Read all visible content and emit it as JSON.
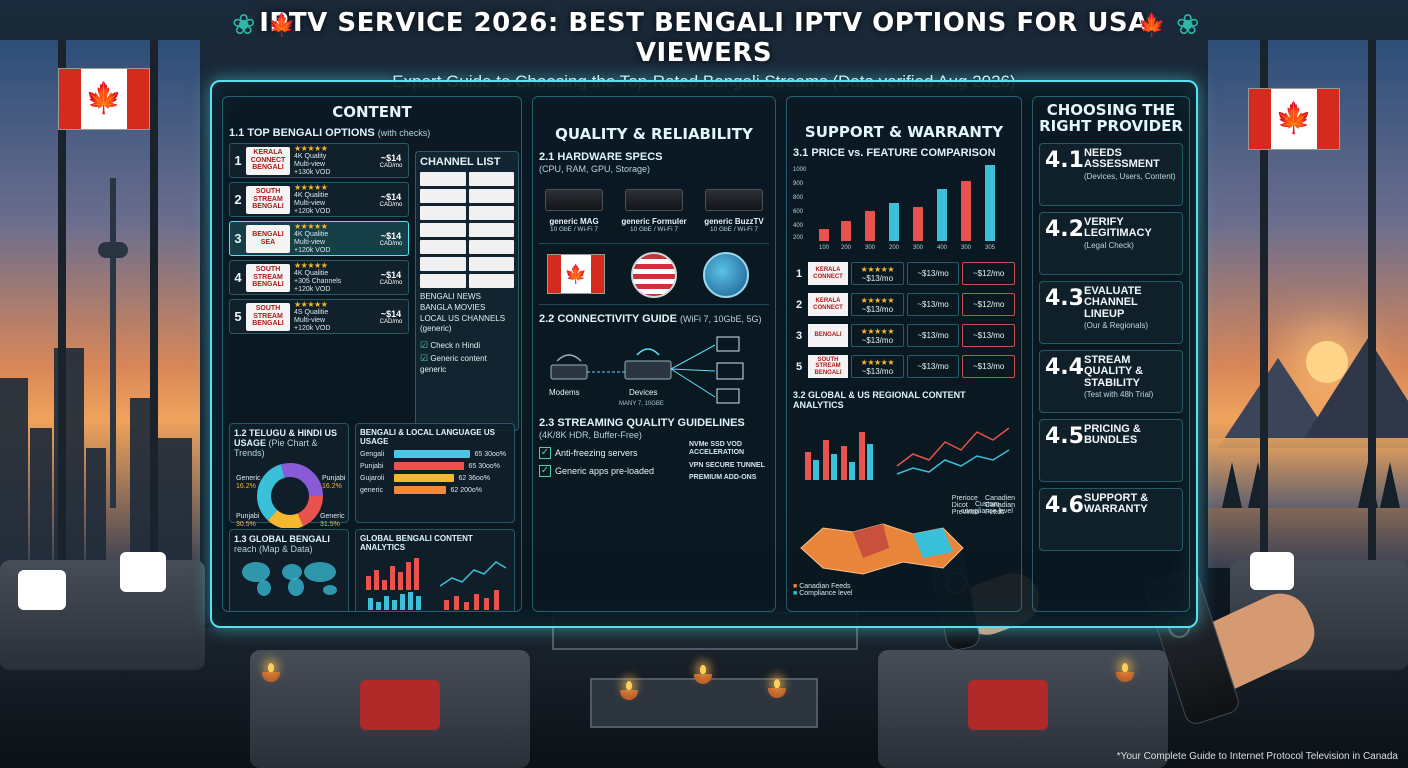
{
  "header": {
    "title": "IPTV SERVICE 2026: BEST BENGALI IPTV OPTIONS FOR USA VIEWERS",
    "subtitle": "Expert Guide to Choosing the Top-Rated Bengali Streams (Data verified Aug 2026)"
  },
  "content_panel": {
    "title": "CONTENT",
    "section_1_1": {
      "label": "1.1 TOP BENGALI OPTIONS",
      "note": "(with checks)"
    },
    "options": [
      {
        "num": "1",
        "logo": "KERALA CONNECT BENGALI",
        "stars": "★★★★★",
        "line1": "4K Quality",
        "line2": "Multi-view",
        "line3": "+130k VOD",
        "price": "~$14",
        "unit": "CAD/mo"
      },
      {
        "num": "2",
        "logo": "SOUTH STREAM BENGALI",
        "stars": "★★★★★",
        "line1": "4K Qualitie",
        "line2": "Multi-view",
        "line3": "+120k VOD",
        "price": "~$14",
        "unit": "CAD/mo"
      },
      {
        "num": "3",
        "logo": "BENGALI SEA",
        "stars": "★★★★★",
        "line1": "4K Qualitie",
        "line2": "Multi-view",
        "line3": "+120k VOD",
        "price": "~$14",
        "unit": "CAD/mo"
      },
      {
        "num": "4",
        "logo": "SOUTH STREAM BENGALI",
        "stars": "★★★★★",
        "line1": "4K Qualitie",
        "line2": "+305 Channels",
        "line3": "+120k VOD",
        "price": "~$14",
        "unit": "CAD/mo"
      },
      {
        "num": "5",
        "logo": "SOUTH STREAM BENGALI",
        "stars": "★★★★★",
        "line1": "4S Qualitie",
        "line2": "Multi-view",
        "line3": "+120k VOD",
        "price": "~$14",
        "unit": "CAD/mo"
      }
    ],
    "channel_list": {
      "label": "CHANNEL LIST",
      "items": [
        "BENGALI NEWS",
        "BANGLA MOVIES",
        "LOCAL US CHANNELS (generic)"
      ],
      "checks": [
        "Check n Hindi",
        "Generic content generic"
      ]
    },
    "section_1_2": {
      "label": "1.2 TELUGU & HINDI US USAGE",
      "note": "(Pie Chart & Trends)"
    },
    "pie_labels": [
      {
        "name": "Generic",
        "value": "16.2%"
      },
      {
        "name": "Punjabi",
        "value": "16.2%"
      },
      {
        "name": "Punjabi",
        "value": "30.5%"
      },
      {
        "name": "Generic",
        "value": "31.5%"
      }
    ],
    "usage_panel": {
      "label": "BENGALI & LOCAL LANGUAGE US USAGE",
      "rows": [
        {
          "name": "Gengali",
          "value": "65 30oo%"
        },
        {
          "name": "Punjabi",
          "value": "65 30oo%"
        },
        {
          "name": "Gujaroli",
          "value": "62 36oo%"
        },
        {
          "name": "generic",
          "value": "62 200o%"
        }
      ]
    },
    "section_1_3": {
      "label": "1.3 GLOBAL BENGALI",
      "note": "reach (Map & Data)"
    },
    "analytics_label": "GLOBAL BENGALI CONTENT ANALYTICS"
  },
  "quality_panel": {
    "title": "QUALITY & RELIABILITY",
    "section_2_1": {
      "label": "2.1 HARDWARE SPECS",
      "note": "(CPU, RAM, GPU, Storage)"
    },
    "boxes": [
      {
        "name": "generic MAG",
        "spec": "10 GbE / Wi-Fi 7"
      },
      {
        "name": "generic Formuler",
        "spec": "10 GbE / Wi-Fi 7"
      },
      {
        "name": "generic BuzzTV",
        "spec": "10 GbE / Wi-Fi 7"
      }
    ],
    "section_2_2": {
      "label": "2.2 CONNECTIVITY GUIDE",
      "note": "(WiFi 7, 10GbE, 5G)"
    },
    "net_labels": {
      "modems": "Modems",
      "devices": "Devices",
      "devices_sub": "MANY 7, 10GBE"
    },
    "section_2_3": {
      "label": "2.3 STREAMING QUALITY GUIDELINES",
      "note": "(4K/8K HDR, Buffer-Free)"
    },
    "guidelines": [
      "Anti-freezing servers",
      "Generic apps pre-loaded"
    ],
    "tags": [
      "NVMe SSD VOD ACCELERATION",
      "VPN SECURE TUNNEL",
      "PREMIUM ADD-ONS"
    ]
  },
  "support_panel": {
    "title": "SUPPORT & WARRANTY",
    "section_3_1": {
      "label": "3.1 PRICE vs. FEATURE COMPARISON"
    },
    "chart_y_ticks": [
      "1000",
      "900",
      "800",
      "600",
      "400",
      "200"
    ],
    "chart_x_ticks": [
      "100",
      "200",
      "300",
      "200",
      "300",
      "400",
      "300",
      "305"
    ],
    "comparison": [
      {
        "num": "1",
        "logo": "KERALA CONNECT",
        "stars": "★★★★★",
        "p1": "~$13/mo",
        "p2": "~$13/mo",
        "p3": "~$12/mo"
      },
      {
        "num": "2",
        "logo": "KERALA CONNECT",
        "stars": "★★★★★",
        "p1": "~$13/mo",
        "p2": "~$13/mo",
        "p3": "~$12/mo"
      },
      {
        "num": "3",
        "logo": "BENGALI",
        "stars": "★★★★★",
        "p1": "~$13/mo",
        "p2": "~$13/mo",
        "p3": "~$13/mo"
      },
      {
        "num": "5",
        "logo": "SOUTH STREAM BENGALI",
        "stars": "★★★★★",
        "p1": "~$13/mo",
        "p2": "~$13/mo",
        "p3": "~$13/mo"
      }
    ],
    "section_3_2": {
      "label": "3.2 GLOBAL & US REGIONAL CONTENT ANALYTICS"
    },
    "legend": [
      "Prerioce",
      "Canadien",
      "Dicot",
      "Canadian",
      "Previnco",
      "Feeds"
    ],
    "map_legend": [
      "Canadian Feeds",
      "Compliance level"
    ],
    "compliance_note": "Custom compliance level"
  },
  "provider_panel": {
    "title": "CHOOSING THE RIGHT PROVIDER",
    "steps": [
      {
        "num": "4.1",
        "text": "NEEDS ASSESSMENT",
        "sub": "(Devices, Users, Content)"
      },
      {
        "num": "4.2",
        "text": "VERIFY LEGITIMACY",
        "sub": "(Legal Check)"
      },
      {
        "num": "4.3",
        "text": "EVALUATE CHANNEL LINEUP",
        "sub": "(Our & Regionals)"
      },
      {
        "num": "4.4",
        "text": "STREAM QUALITY & STABILITY",
        "sub": "(Test with 48h Trial)"
      },
      {
        "num": "4.5",
        "text": "PRICING & BUNDLES",
        "sub": ""
      },
      {
        "num": "4.6",
        "text": "SUPPORT & WARRANTY",
        "sub": ""
      }
    ]
  },
  "footnote": "*Your Complete Guide to Internet Protocol Television in Canada",
  "colors": {
    "accent": "#56e0f2",
    "flag_red": "#d52b1e",
    "star": "#f3b82f"
  }
}
